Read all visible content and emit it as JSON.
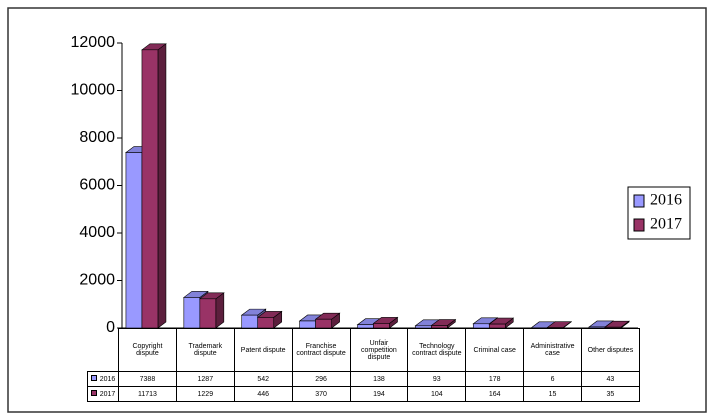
{
  "chart_data": {
    "type": "bar3d",
    "categories": [
      "Copyright dispute",
      "Trademark dispute",
      "Patent dispute",
      "Franchise contract dispute",
      "Unfair competition dispute",
      "Technology contract dispute",
      "Criminal case",
      "Administrative case",
      "Other disputes"
    ],
    "series": [
      {
        "name": "2016",
        "color": "#9999ff",
        "values": [
          7388,
          1287,
          542,
          296,
          138,
          93,
          178,
          6,
          43
        ]
      },
      {
        "name": "2017",
        "color": "#993366",
        "values": [
          11713,
          1229,
          446,
          370,
          194,
          104,
          164,
          15,
          35
        ]
      }
    ],
    "ylim": [
      0,
      12000
    ],
    "yticks": [
      0,
      2000,
      4000,
      6000,
      8000,
      10000,
      12000
    ],
    "legend": "right"
  }
}
